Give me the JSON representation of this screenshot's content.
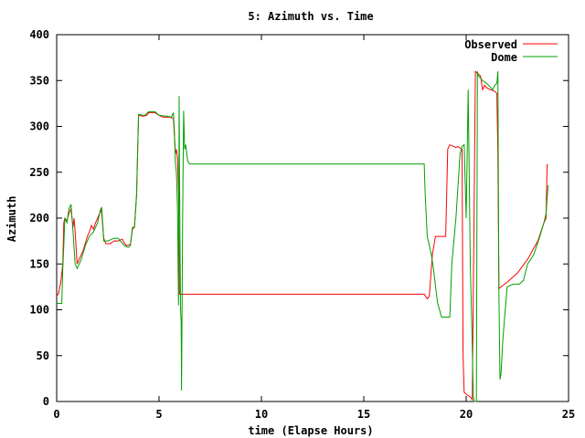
{
  "chart_data": {
    "type": "line",
    "title": "5: Azimuth vs. Time",
    "xlabel": "time (Elapse Hours)",
    "ylabel": "Azimuth",
    "xlim": [
      0,
      25
    ],
    "ylim": [
      0,
      400
    ],
    "xticks": [
      0,
      5,
      10,
      15,
      20,
      25
    ],
    "yticks": [
      0,
      50,
      100,
      150,
      200,
      250,
      300,
      350,
      400
    ],
    "grid": false,
    "legend_position": "top-right",
    "series": [
      {
        "name": "Observed",
        "color": "#ff0000",
        "points": [
          [
            0.0,
            115
          ],
          [
            0.1,
            118
          ],
          [
            0.15,
            125
          ],
          [
            0.2,
            130
          ],
          [
            0.3,
            150
          ],
          [
            0.35,
            195
          ],
          [
            0.4,
            200
          ],
          [
            0.5,
            197
          ],
          [
            0.6,
            205
          ],
          [
            0.7,
            210
          ],
          [
            0.8,
            190
          ],
          [
            0.85,
            200
          ],
          [
            0.9,
            185
          ],
          [
            1.0,
            150
          ],
          [
            1.1,
            155
          ],
          [
            1.3,
            165
          ],
          [
            1.5,
            180
          ],
          [
            1.6,
            185
          ],
          [
            1.7,
            192
          ],
          [
            1.8,
            188
          ],
          [
            1.9,
            195
          ],
          [
            2.0,
            200
          ],
          [
            2.1,
            205
          ],
          [
            2.15,
            210
          ],
          [
            2.2,
            205
          ],
          [
            2.3,
            178
          ],
          [
            2.4,
            172
          ],
          [
            2.6,
            172
          ],
          [
            2.8,
            175
          ],
          [
            3.0,
            175
          ],
          [
            3.2,
            177
          ],
          [
            3.3,
            173
          ],
          [
            3.4,
            170
          ],
          [
            3.6,
            171
          ],
          [
            3.7,
            188
          ],
          [
            3.8,
            190
          ],
          [
            3.9,
            225
          ],
          [
            4.0,
            312
          ],
          [
            4.2,
            311
          ],
          [
            4.4,
            312
          ],
          [
            4.5,
            315
          ],
          [
            4.8,
            315
          ],
          [
            5.0,
            312
          ],
          [
            5.2,
            310
          ],
          [
            5.5,
            310
          ],
          [
            5.7,
            309
          ],
          [
            5.75,
            290
          ],
          [
            5.8,
            270
          ],
          [
            5.85,
            275
          ],
          [
            5.9,
            265
          ],
          [
            5.95,
            230
          ],
          [
            6.0,
            117
          ],
          [
            10.0,
            117
          ],
          [
            15.0,
            117
          ],
          [
            17.95,
            117
          ],
          [
            18.1,
            112
          ],
          [
            18.2,
            115
          ],
          [
            18.35,
            160
          ],
          [
            18.5,
            180
          ],
          [
            19.0,
            180
          ],
          [
            19.1,
            275
          ],
          [
            19.2,
            280
          ],
          [
            19.5,
            277
          ],
          [
            19.6,
            278
          ],
          [
            19.8,
            275
          ],
          [
            19.85,
            50
          ],
          [
            19.9,
            10
          ],
          [
            20.0,
            8
          ],
          [
            20.2,
            5
          ],
          [
            20.3,
            2
          ],
          [
            20.45,
            360
          ],
          [
            20.55,
            358
          ],
          [
            20.7,
            355
          ],
          [
            20.8,
            340
          ],
          [
            20.9,
            345
          ],
          [
            21.0,
            342
          ],
          [
            21.2,
            340
          ],
          [
            21.4,
            338
          ],
          [
            21.5,
            336
          ],
          [
            21.55,
            270
          ],
          [
            21.6,
            123
          ],
          [
            21.7,
            125
          ],
          [
            22.0,
            130
          ],
          [
            22.5,
            140
          ],
          [
            23.0,
            155
          ],
          [
            23.5,
            175
          ],
          [
            23.8,
            195
          ],
          [
            23.9,
            200
          ],
          [
            23.95,
            258
          ],
          [
            24.0,
            258
          ]
        ]
      },
      {
        "name": "Dome",
        "color": "#00a000",
        "points": [
          [
            0.0,
            107
          ],
          [
            0.25,
            107
          ],
          [
            0.3,
            145
          ],
          [
            0.35,
            170
          ],
          [
            0.4,
            200
          ],
          [
            0.5,
            195
          ],
          [
            0.6,
            210
          ],
          [
            0.7,
            215
          ],
          [
            0.8,
            185
          ],
          [
            0.9,
            150
          ],
          [
            1.0,
            145
          ],
          [
            1.2,
            155
          ],
          [
            1.4,
            170
          ],
          [
            1.6,
            180
          ],
          [
            1.8,
            185
          ],
          [
            2.0,
            195
          ],
          [
            2.1,
            205
          ],
          [
            2.2,
            212
          ],
          [
            2.3,
            175
          ],
          [
            2.5,
            175
          ],
          [
            2.8,
            178
          ],
          [
            3.0,
            178
          ],
          [
            3.3,
            170
          ],
          [
            3.5,
            168
          ],
          [
            3.6,
            170
          ],
          [
            3.7,
            190
          ],
          [
            3.8,
            190
          ],
          [
            3.9,
            225
          ],
          [
            4.0,
            313
          ],
          [
            4.3,
            312
          ],
          [
            4.5,
            316
          ],
          [
            4.8,
            316
          ],
          [
            5.0,
            312
          ],
          [
            5.4,
            311
          ],
          [
            5.6,
            310
          ],
          [
            5.7,
            315
          ],
          [
            5.75,
            295
          ],
          [
            5.8,
            260
          ],
          [
            5.85,
            250
          ],
          [
            5.9,
            210
          ],
          [
            5.95,
            105
          ],
          [
            5.98,
            333
          ],
          [
            6.0,
            250
          ],
          [
            6.05,
            100
          ],
          [
            6.08,
            87
          ],
          [
            6.1,
            12
          ],
          [
            6.15,
            200
          ],
          [
            6.2,
            317
          ],
          [
            6.25,
            275
          ],
          [
            6.3,
            280
          ],
          [
            6.4,
            262
          ],
          [
            6.5,
            259
          ],
          [
            10.0,
            259
          ],
          [
            15.0,
            259
          ],
          [
            17.95,
            259
          ],
          [
            18.0,
            225
          ],
          [
            18.1,
            180
          ],
          [
            18.2,
            170
          ],
          [
            18.3,
            160
          ],
          [
            18.4,
            145
          ],
          [
            18.6,
            108
          ],
          [
            18.8,
            92
          ],
          [
            19.2,
            92
          ],
          [
            19.3,
            150
          ],
          [
            19.5,
            200
          ],
          [
            19.7,
            270
          ],
          [
            19.8,
            278
          ],
          [
            19.9,
            280
          ],
          [
            20.0,
            200
          ],
          [
            20.1,
            340
          ],
          [
            20.2,
            150
          ],
          [
            20.3,
            60
          ],
          [
            20.35,
            5
          ],
          [
            20.4,
            0
          ],
          [
            20.5,
            0
          ],
          [
            20.55,
            360
          ],
          [
            20.6,
            355
          ],
          [
            20.8,
            350
          ],
          [
            21.0,
            347
          ],
          [
            21.3,
            340
          ],
          [
            21.4,
            345
          ],
          [
            21.5,
            347
          ],
          [
            21.55,
            360
          ],
          [
            21.6,
            120
          ],
          [
            21.65,
            24
          ],
          [
            21.7,
            30
          ],
          [
            21.8,
            70
          ],
          [
            22.0,
            125
          ],
          [
            22.3,
            128
          ],
          [
            22.6,
            128
          ],
          [
            22.8,
            132
          ],
          [
            23.0,
            150
          ],
          [
            23.3,
            160
          ],
          [
            23.6,
            180
          ],
          [
            23.8,
            195
          ],
          [
            23.9,
            205
          ],
          [
            24.0,
            236
          ]
        ]
      }
    ]
  }
}
